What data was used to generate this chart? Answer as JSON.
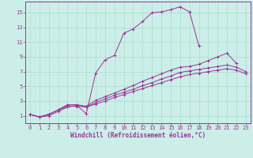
{
  "xlabel": "Windchill (Refroidissement éolien,°C)",
  "background_color": "#cceee8",
  "grid_color": "#aaddcc",
  "line_color": "#993399",
  "spine_color": "#993399",
  "xlim": [
    -0.5,
    23.5
  ],
  "ylim": [
    0,
    16.5
  ],
  "xticks": [
    0,
    1,
    2,
    3,
    4,
    5,
    6,
    7,
    8,
    9,
    10,
    11,
    12,
    13,
    14,
    15,
    16,
    17,
    18,
    19,
    20,
    21,
    22,
    23
  ],
  "yticks": [
    1,
    3,
    5,
    7,
    9,
    11,
    13,
    15
  ],
  "tick_fontsize": 5.0,
  "xlabel_fontsize": 5.5,
  "series": [
    {
      "x": [
        0,
        1,
        2,
        3,
        4,
        5,
        6,
        7,
        8,
        9,
        10,
        11,
        12,
        13,
        14,
        15,
        16,
        17,
        18
      ],
      "y": [
        1.2,
        0.85,
        1.0,
        1.6,
        2.2,
        2.4,
        1.3,
        6.8,
        8.6,
        9.2,
        12.2,
        12.8,
        13.8,
        15.0,
        15.1,
        15.4,
        15.8,
        15.1,
        10.5
      ]
    },
    {
      "x": [
        0,
        1,
        2,
        3,
        4,
        5,
        6,
        7,
        8,
        9,
        10,
        11,
        12,
        13,
        14,
        15,
        16,
        17,
        18,
        19,
        20,
        21,
        22
      ],
      "y": [
        1.2,
        0.85,
        1.2,
        1.8,
        2.5,
        2.5,
        2.3,
        3.1,
        3.6,
        4.1,
        4.6,
        5.1,
        5.7,
        6.2,
        6.7,
        7.2,
        7.6,
        7.7,
        8.0,
        8.5,
        9.0,
        9.5,
        8.1
      ]
    },
    {
      "x": [
        0,
        1,
        2,
        3,
        4,
        5,
        6,
        7,
        8,
        9,
        10,
        11,
        12,
        13,
        14,
        15,
        16,
        17,
        18,
        19,
        20,
        21,
        22,
        23
      ],
      "y": [
        1.2,
        0.85,
        1.2,
        1.8,
        2.5,
        2.5,
        2.2,
        2.8,
        3.3,
        3.8,
        4.2,
        4.6,
        5.1,
        5.5,
        6.0,
        6.4,
        6.9,
        7.1,
        7.3,
        7.5,
        7.7,
        7.9,
        7.6,
        7.0
      ]
    },
    {
      "x": [
        0,
        1,
        2,
        3,
        4,
        5,
        6,
        7,
        8,
        9,
        10,
        11,
        12,
        13,
        14,
        15,
        16,
        17,
        18,
        19,
        20,
        21,
        22,
        23
      ],
      "y": [
        1.2,
        0.85,
        1.2,
        1.8,
        2.3,
        2.3,
        2.2,
        2.6,
        3.0,
        3.5,
        3.9,
        4.3,
        4.7,
        5.1,
        5.5,
        5.9,
        6.3,
        6.6,
        6.8,
        7.0,
        7.2,
        7.4,
        7.2,
        6.7
      ]
    }
  ]
}
